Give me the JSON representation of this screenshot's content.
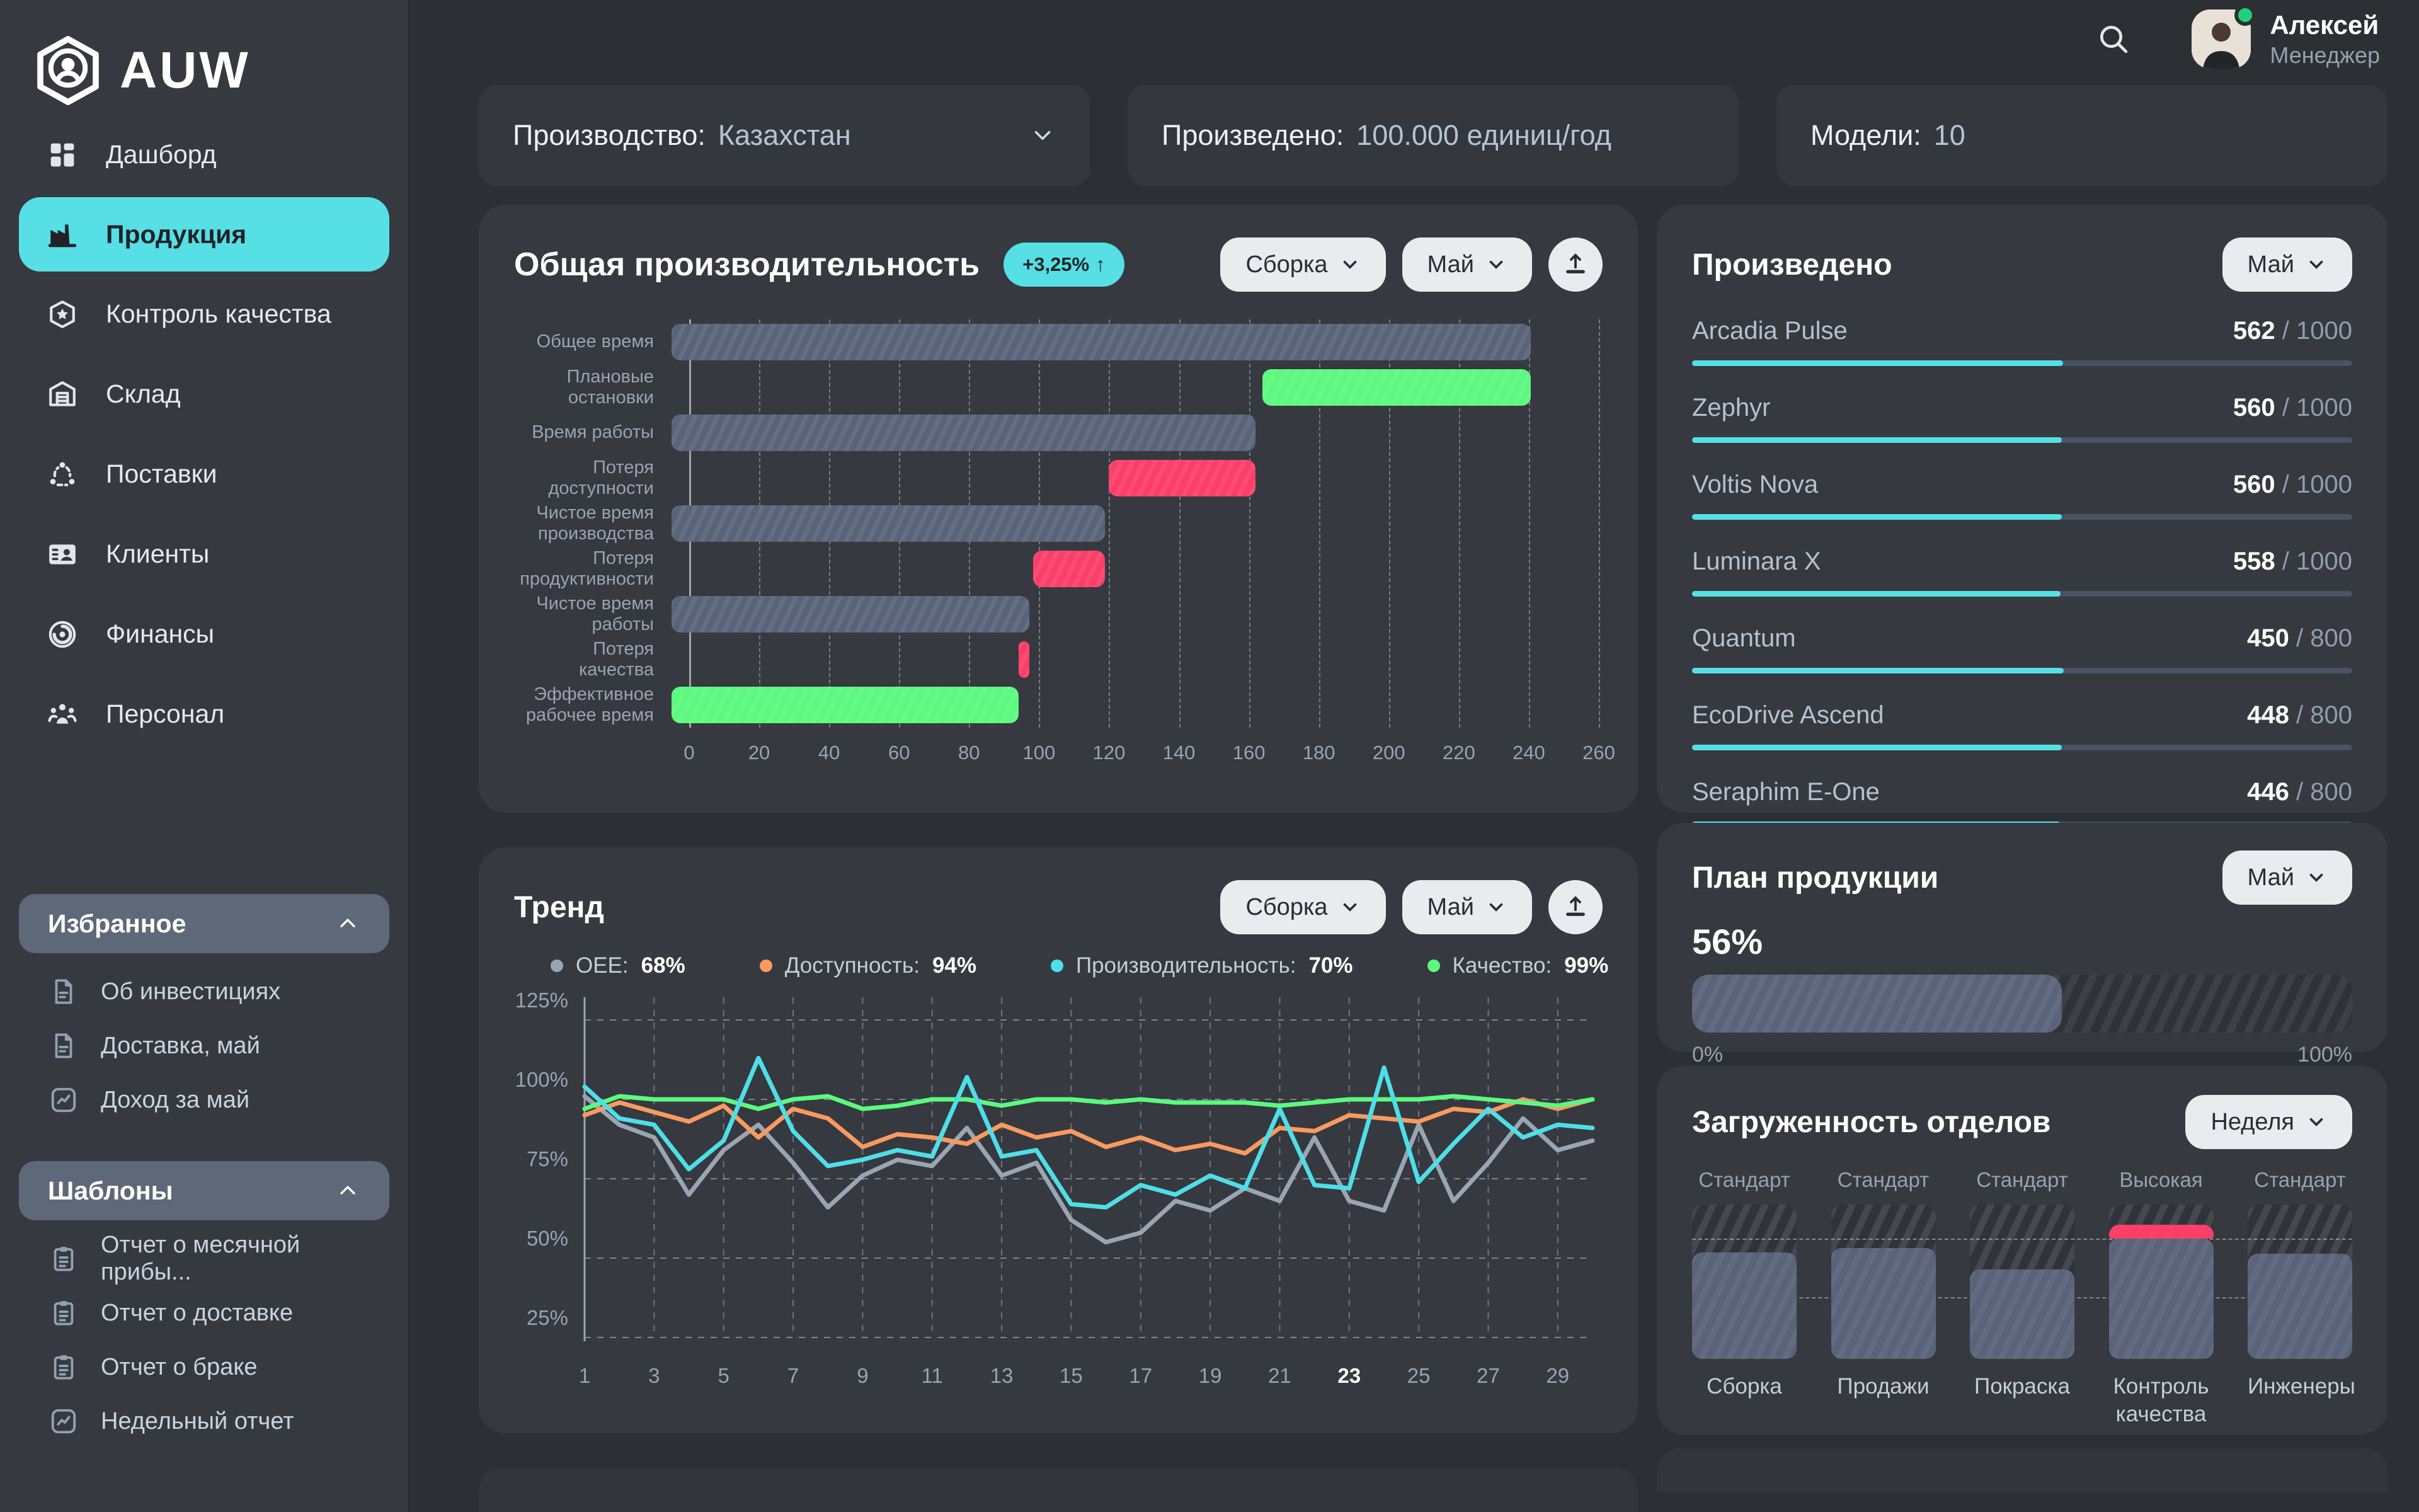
{
  "app": {
    "logo_text": "AUW"
  },
  "topbar": {
    "user_name": "Алексей",
    "user_role": "Менеджер",
    "search_icon": "search-icon",
    "online_color": "#1fd07a"
  },
  "filters": [
    {
      "label": "Производство:",
      "value": "Казахстан",
      "has_dropdown": true
    },
    {
      "label": "Произведено:",
      "value": "100.000 единиц/год",
      "has_dropdown": false
    },
    {
      "label": "Модели:",
      "value": "10",
      "has_dropdown": false
    }
  ],
  "sidebar": {
    "menu": [
      {
        "icon": "dashboard-icon",
        "label": "Дашборд",
        "active": false
      },
      {
        "icon": "factory-icon",
        "label": "Продукция",
        "active": true
      },
      {
        "icon": "quality-icon",
        "label": "Контроль качества",
        "active": false
      },
      {
        "icon": "warehouse-icon",
        "label": "Склад",
        "active": false
      },
      {
        "icon": "supplies-icon",
        "label": "Поставки",
        "active": false
      },
      {
        "icon": "clients-icon",
        "label": "Клиенты",
        "active": false
      },
      {
        "icon": "finance-icon",
        "label": "Финансы",
        "active": false
      },
      {
        "icon": "staff-icon",
        "label": "Персонал",
        "active": false
      }
    ],
    "favorites": {
      "title": "Избранное",
      "collapse_icon": "chevron-up-icon",
      "items": [
        {
          "icon": "document-icon",
          "label": "Об инвестициях"
        },
        {
          "icon": "document-icon",
          "label": "Доставка, май"
        },
        {
          "icon": "trend-icon",
          "label": "Доход за май"
        }
      ]
    },
    "templates": {
      "title": "Шаблоны",
      "collapse_icon": "chevron-up-icon",
      "items": [
        {
          "icon": "clipboard-icon",
          "label": "Отчет о месячной прибы..."
        },
        {
          "icon": "clipboard-icon",
          "label": "Отчет о доставке"
        },
        {
          "icon": "clipboard-icon",
          "label": "Отчет о браке"
        },
        {
          "icon": "trend-icon",
          "label": "Недельный отчет"
        }
      ]
    }
  },
  "oee_card": {
    "title": "Общая производительность",
    "badge": "+3,25%",
    "badge_arrow": "↑",
    "controls": {
      "assembly": "Сборка",
      "month": "Май",
      "export_icon": "upload-icon"
    },
    "chart_data": {
      "type": "bar",
      "orientation": "horizontal",
      "xlim": [
        0,
        260
      ],
      "x_ticks": [
        0,
        20,
        40,
        60,
        80,
        100,
        120,
        140,
        160,
        180,
        200,
        220,
        240,
        260
      ],
      "grid": true,
      "categories": [
        "Общее время",
        "Плановые остановки",
        "Время работы",
        "Потеря доступности",
        "Чистое время производства",
        "Потеря продуктивности",
        "Чистое время работы",
        "Потеря качества",
        "Эффективное рабочее время"
      ],
      "segments": [
        {
          "label": "Общее время",
          "start": 0,
          "end": 240,
          "color": "#5a6379"
        },
        {
          "label": "Плановые остановки",
          "start": 165,
          "end": 240,
          "color": "#5cf87f"
        },
        {
          "label": "Время работы",
          "start": 0,
          "end": 163,
          "color": "#5a6379"
        },
        {
          "label": "Потеря доступности",
          "start": 122,
          "end": 163,
          "color": "#fc3f69"
        },
        {
          "label": "Чистое время производства",
          "start": 0,
          "end": 121,
          "color": "#5a6379"
        },
        {
          "label": "Потеря продуктивности",
          "start": 101,
          "end": 121,
          "color": "#fc3f69"
        },
        {
          "label": "Чистое время работы",
          "start": 0,
          "end": 100,
          "color": "#5a6379"
        },
        {
          "label": "Потеря качества",
          "start": 97,
          "end": 100,
          "color": "#fc3f69"
        },
        {
          "label": "Эффективное рабочее время",
          "start": 0,
          "end": 97,
          "color": "#5cf87f"
        }
      ]
    }
  },
  "trend_card": {
    "title": "Тренд",
    "controls": {
      "assembly": "Сборка",
      "month": "Май",
      "export_icon": "upload-icon"
    },
    "legend": [
      {
        "label": "OEE:",
        "value": "68%",
        "color": "#9aa5b3"
      },
      {
        "label": "Доступность:",
        "value": "94%",
        "color": "#f89a60"
      },
      {
        "label": "Производительность:",
        "value": "70%",
        "color": "#4edee8"
      },
      {
        "label": "Качество:",
        "value": "99%",
        "color": "#5bf97e"
      }
    ],
    "chart_data": {
      "type": "line",
      "x": [
        1,
        2,
        3,
        4,
        5,
        6,
        7,
        8,
        9,
        10,
        11,
        12,
        13,
        14,
        15,
        16,
        17,
        18,
        19,
        20,
        21,
        22,
        23,
        24,
        25,
        26,
        27,
        28,
        29,
        30
      ],
      "x_ticks_shown": [
        1,
        3,
        5,
        7,
        9,
        11,
        13,
        15,
        17,
        19,
        21,
        23,
        25,
        27,
        29
      ],
      "highlighted_tick": 23,
      "ylim": [
        25,
        125
      ],
      "y_ticks": [
        125,
        100,
        75,
        50,
        25
      ],
      "y_tick_labels": [
        "125%",
        "100%",
        "75%",
        "50%",
        "25%"
      ],
      "grid": true,
      "legend_position": "top",
      "series": [
        {
          "name": "OEE",
          "color": "#9aa5b3",
          "values": [
            101,
            92,
            88,
            70,
            84,
            92,
            80,
            66,
            76,
            81,
            79,
            91,
            76,
            80,
            62,
            55,
            58,
            68,
            65,
            72,
            68,
            88,
            68,
            65,
            92,
            68,
            80,
            94,
            84,
            87
          ]
        },
        {
          "name": "Доступность",
          "color": "#f89a60",
          "values": [
            95,
            99,
            96,
            93,
            98,
            88,
            97,
            94,
            85,
            89,
            88,
            86,
            92,
            88,
            90,
            85,
            88,
            84,
            86,
            83,
            91,
            90,
            95,
            94,
            93,
            97,
            96,
            100,
            97,
            100
          ]
        },
        {
          "name": "Производительность",
          "color": "#4edee8",
          "values": [
            104,
            94,
            92,
            78,
            87,
            113,
            90,
            79,
            81,
            84,
            82,
            107,
            82,
            84,
            67,
            66,
            73,
            70,
            76,
            72,
            97,
            73,
            72,
            110,
            74,
            86,
            97,
            88,
            92,
            91
          ]
        },
        {
          "name": "Качество",
          "color": "#5bf97e",
          "values": [
            97,
            101,
            100,
            100,
            100,
            97,
            100,
            101,
            97,
            98,
            100,
            100,
            98,
            100,
            100,
            99,
            100,
            99,
            99,
            99,
            98,
            99,
            100,
            100,
            100,
            101,
            100,
            99,
            98,
            100
          ]
        }
      ]
    }
  },
  "produced_card": {
    "title": "Произведено",
    "period": "Май",
    "items": [
      {
        "name": "Arcadia Pulse",
        "value": 562,
        "max": 1000
      },
      {
        "name": "Zephyr",
        "value": 560,
        "max": 1000
      },
      {
        "name": "Voltis Nova",
        "value": 560,
        "max": 1000
      },
      {
        "name": "Luminara X",
        "value": 558,
        "max": 1000
      },
      {
        "name": "Quantum",
        "value": 450,
        "max": 800
      },
      {
        "name": "EcoDrive Ascend",
        "value": 448,
        "max": 800
      },
      {
        "name": "Seraphim E-One",
        "value": 446,
        "max": 800
      }
    ]
  },
  "plan_card": {
    "title": "План продукции",
    "period": "Май",
    "percent": "56%",
    "percent_value": 56,
    "scale_min": "0%",
    "scale_max": "100%"
  },
  "load_card": {
    "title": "Загруженность отделов",
    "period": "Неделя",
    "guide_lines": [
      78,
      40
    ],
    "departments": [
      {
        "name": "Сборка",
        "status": "Стандарт",
        "fill": 69,
        "highlight": false
      },
      {
        "name": "Продажи",
        "status": "Стандарт",
        "fill": 72,
        "highlight": false
      },
      {
        "name": "Покраска",
        "status": "Стандарт",
        "fill": 58,
        "highlight": false
      },
      {
        "name": "Контроль качества",
        "status": "Высокая",
        "fill": 78,
        "peak_fill": 87,
        "highlight": true
      },
      {
        "name": "Инженеры",
        "status": "Стандарт",
        "fill": 68,
        "highlight": false
      }
    ]
  },
  "colors": {
    "accent": "#56dfe4",
    "good": "#5cf87f",
    "bad": "#fc3f69",
    "warn": "#f89a60",
    "bar": "#5a6379"
  }
}
